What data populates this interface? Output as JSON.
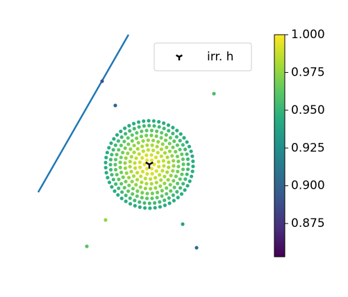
{
  "chart_data": {
    "type": "scatter",
    "xlim": [
      -1.6,
      1.5
    ],
    "ylim": [
      -1.63,
      1.87
    ],
    "clim": [
      0.853,
      1.0
    ],
    "colormap": "viridis",
    "rings": [
      {
        "r": 0.07,
        "n": 6,
        "c": 0.995
      },
      {
        "r": 0.14,
        "n": 12,
        "c": 0.99
      },
      {
        "r": 0.21,
        "n": 18,
        "c": 0.985
      },
      {
        "r": 0.28,
        "n": 24,
        "c": 0.98
      },
      {
        "r": 0.35,
        "n": 30,
        "c": 0.975
      },
      {
        "r": 0.42,
        "n": 36,
        "c": 0.968
      },
      {
        "r": 0.49,
        "n": 42,
        "c": 0.962
      },
      {
        "r": 0.56,
        "n": 48,
        "c": 0.953
      },
      {
        "r": 0.63,
        "n": 54,
        "c": 0.944
      }
    ],
    "series": [
      {
        "x": [
          -0.68,
          -0.49,
          0.93,
          -0.63,
          0.48,
          0.68,
          -0.9
        ],
        "y": [
          1.2,
          0.85,
          1.02,
          -0.8,
          -0.86,
          -1.2,
          -1.18
        ],
        "c": [
          0.892,
          0.9,
          0.955,
          0.975,
          0.935,
          0.905,
          0.96
        ]
      }
    ],
    "line": {
      "color": "#1f77b4",
      "x": [
        -1.6,
        -0.3
      ],
      "y": [
        -0.4,
        1.87
      ]
    },
    "marker": {
      "name": "irr. h",
      "x": 0,
      "y": 0,
      "color": "#000000"
    },
    "legend": "upper right",
    "cticks": [
      0.875,
      {
        "value": 0.9,
        "label": "0.900"
      },
      0.925,
      {
        "value": 0.95,
        "label": "0.950"
      },
      0.975,
      {
        "value": 1.0,
        "label": "1.000"
      }
    ]
  }
}
